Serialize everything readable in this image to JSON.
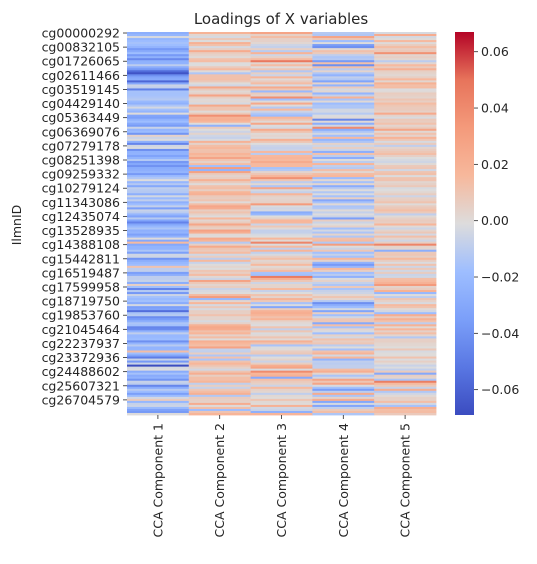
{
  "chart_data": {
    "type": "heatmap",
    "title": "Loadings of X variables",
    "xlabel": "",
    "ylabel": "IlmnID",
    "columns": [
      "CCA Component 1",
      "CCA Component 2",
      "CCA Component 3",
      "CCA Component 4",
      "CCA Component 5"
    ],
    "row_labels_shown": [
      "cg00000292",
      "cg00832105",
      "cg01726065",
      "cg02611466",
      "cg03519145",
      "cg04429140",
      "cg05363449",
      "cg06369076",
      "cg07279178",
      "cg08251398",
      "cg09259332",
      "cg10279124",
      "cg11343086",
      "cg12435074",
      "cg13528935",
      "cg14388108",
      "cg15442811",
      "cg16519487",
      "cg17599958",
      "cg18719750",
      "cg19853760",
      "cg21045464",
      "cg22237937",
      "cg23372936",
      "cg24488602",
      "cg25607321",
      "cg26704579"
    ],
    "colorbar": {
      "colormap": "coolwarm",
      "vmin": -0.069,
      "vmax": 0.067,
      "ticks": [
        0.06,
        0.04,
        0.02,
        0.0,
        -0.02,
        -0.04,
        -0.06
      ],
      "tick_labels": [
        "0.06",
        "0.04",
        "0.02",
        "0.00",
        "−0.02",
        "−0.04",
        "−0.06"
      ]
    },
    "column_value_profile": {
      "CCA Component 1": {
        "typical": -0.022,
        "spread": 0.014
      },
      "CCA Component 2": {
        "typical": 0.008,
        "spread": 0.01
      },
      "CCA Component 3": {
        "typical": 0.003,
        "spread": 0.012
      },
      "CCA Component 4": {
        "typical": -0.006,
        "spread": 0.014
      },
      "CCA Component 5": {
        "typical": 0.005,
        "spread": 0.008
      }
    },
    "grid": false,
    "legend": "colorbar-right"
  }
}
